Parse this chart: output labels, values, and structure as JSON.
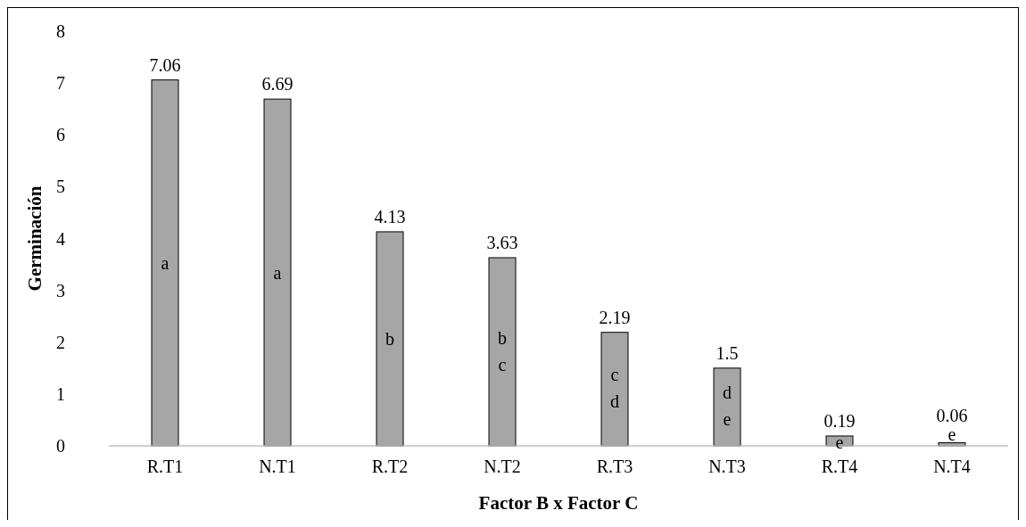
{
  "chart_data": {
    "type": "bar",
    "xlabel": "Factor B x Factor C",
    "ylabel": "Germinación",
    "categories": [
      "R.T1",
      "N.T1",
      "R.T2",
      "N.T2",
      "R.T3",
      "N.T3",
      "R.T4",
      "N.T4"
    ],
    "values": [
      7.06,
      6.69,
      4.13,
      3.63,
      2.19,
      1.5,
      0.19,
      0.06
    ],
    "color": "#a6a6a6",
    "ylim": [
      0,
      8
    ],
    "yticks": [
      0,
      1,
      2,
      3,
      4,
      5,
      6,
      7,
      8
    ],
    "grid": false,
    "data_labels": true,
    "annotations": [
      "a",
      "a",
      "b",
      "b c",
      "c d",
      "d e",
      "e",
      "e"
    ]
  }
}
